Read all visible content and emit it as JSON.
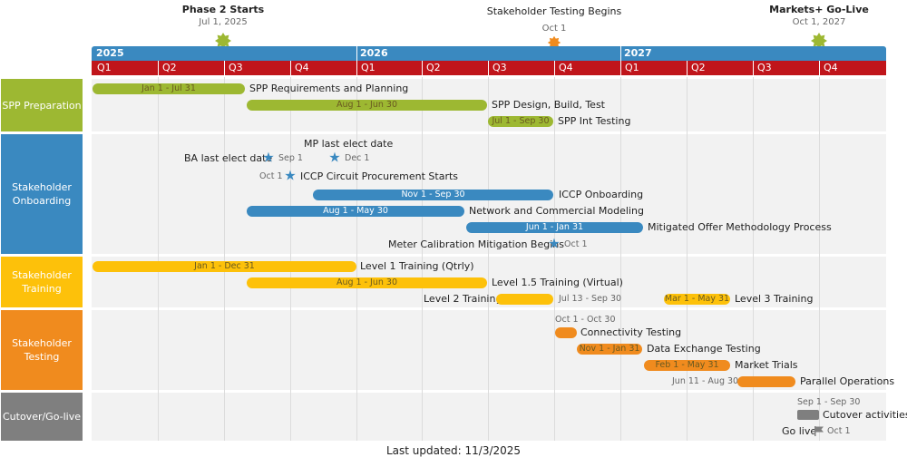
{
  "milestones_top": [
    {
      "title": "Phase 2 Starts",
      "date": "Jul 1, 2025",
      "bold": true,
      "shape": "sun-burst",
      "color": "#9db832"
    },
    {
      "title": "Stakeholder Testing Begins",
      "date": "Oct 1",
      "bold": false,
      "shape": "sun-burst",
      "color": "#f08b1e"
    },
    {
      "title": "Markets+ Go-Live",
      "date": "Oct 1, 2027",
      "bold": true,
      "shape": "sun-burst",
      "color": "#9db832"
    }
  ],
  "timeline": {
    "years": [
      "2025",
      "2026",
      "2027"
    ],
    "quarters": [
      "Q1",
      "Q2",
      "Q3",
      "Q4",
      "Q1",
      "Q2",
      "Q3",
      "Q4",
      "Q1",
      "Q2",
      "Q3",
      "Q4"
    ],
    "year_color": "#3a89c0",
    "quarter_color": "#c0151b"
  },
  "swimlanes": [
    {
      "label": "SPP Preparation",
      "color": "#9db832"
    },
    {
      "label": "Stakeholder Onboarding",
      "color": "#3a89c0"
    },
    {
      "label": "Stakeholder Training",
      "color": "#fdc10a"
    },
    {
      "label": "Stakeholder Testing",
      "color": "#f08b1e"
    },
    {
      "label": "Cutover/Go-live",
      "color": "#7f7f7f"
    }
  ],
  "tasks": [
    {
      "lane": 0,
      "name": "SPP Requirements and Planning",
      "dates": "Jan 1 - Jul 31",
      "color": "#9db832"
    },
    {
      "lane": 0,
      "name": "SPP Design, Build, Test",
      "dates": "Aug 1 - Jun 30",
      "color": "#9db832"
    },
    {
      "lane": 0,
      "name": "SPP Int Testing",
      "dates": "Jul 1 - Sep 30",
      "color": "#9db832"
    },
    {
      "lane": 1,
      "name": "ICCP Onboarding",
      "dates": "Nov 1 - Sep 30",
      "color": "#3a89c0"
    },
    {
      "lane": 1,
      "name": "Network and Commercial Modeling",
      "dates": "Aug 1 - May 30",
      "color": "#3a89c0"
    },
    {
      "lane": 1,
      "name": "Mitigated Offer Methodology Process",
      "dates": "Jun 1 - Jan 31",
      "color": "#3a89c0"
    },
    {
      "lane": 2,
      "name": "Level 1 Training (Qtrly)",
      "dates": "Jan 1 - Dec 31",
      "color": "#fdc10a"
    },
    {
      "lane": 2,
      "name": "Level 1.5 Training (Virtual)",
      "dates": "Aug 1 - Jun 30",
      "color": "#fdc10a"
    },
    {
      "lane": 2,
      "name": "Level 2 Training",
      "dates": "Jul 13 - Sep 30",
      "color": "#fdc10a"
    },
    {
      "lane": 2,
      "name": "Level 3 Training",
      "dates": "Mar 1 - May 31",
      "color": "#fdc10a"
    },
    {
      "lane": 3,
      "name": "Connectivity Testing",
      "dates": "Oct 1 - Oct 30",
      "color": "#f08b1e"
    },
    {
      "lane": 3,
      "name": "Data Exchange Testing",
      "dates": "Nov 1 - Jan 31",
      "color": "#f08b1e"
    },
    {
      "lane": 3,
      "name": "Market Trials",
      "dates": "Feb 1 - May 31",
      "color": "#f08b1e"
    },
    {
      "lane": 3,
      "name": "Parallel Operations",
      "dates": "Jun 11 - Aug 30",
      "color": "#f08b1e"
    },
    {
      "lane": 4,
      "name": "Cutover activities",
      "dates": "Sep 1 - Sep 30",
      "color": "#7f7f7f"
    }
  ],
  "lane_milestones": [
    {
      "name": "MP last elect date",
      "date": "Dec 1",
      "shape": "star-icon"
    },
    {
      "name": "BA last elect date",
      "date": "Sep 1",
      "shape": "star-icon"
    },
    {
      "name": "ICCP Circuit Procurement Starts",
      "date": "Oct 1",
      "shape": "star-icon"
    },
    {
      "name": "Meter Calibration Mitigation Begins",
      "date": "Oct 1",
      "shape": "star-icon"
    },
    {
      "name": "Go live",
      "date": "Oct 1",
      "shape": "flag-icon"
    }
  ],
  "footer": "Last updated: 11/3/2025"
}
